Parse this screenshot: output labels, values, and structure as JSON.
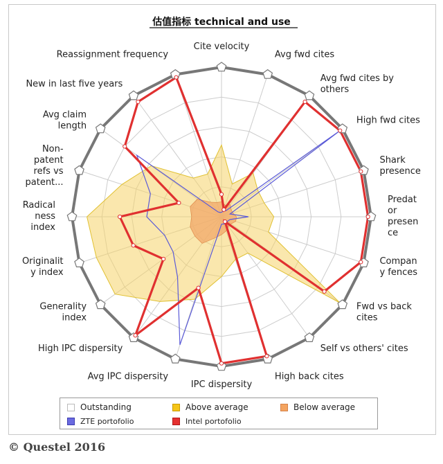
{
  "chart_data": {
    "type": "radar",
    "title": "估值指标 technical and use",
    "axes": [
      "Cite velocity",
      "Avg fwd cites",
      "Avg fwd cites by others",
      "High fwd cites",
      "Shark presence",
      "Predator presence",
      "Company fences",
      "Fwd vs back cites",
      "Self vs others' cites",
      "High back cites",
      "IPC dispersity",
      "Avg IPC dispersity",
      "High IPC dispersity",
      "Generality index",
      "Originality index",
      "Radicalness index",
      "Non-patent refs vs patent...",
      "Avg claim length",
      "New in last five years",
      "Reassignment frequency"
    ],
    "axis_label_lines": [
      [
        "Cite velocity"
      ],
      [
        "Avg fwd cites"
      ],
      [
        "Avg fwd cites by",
        "others"
      ],
      [
        "High fwd cites"
      ],
      [
        "Shark",
        "presence"
      ],
      [
        "Predat",
        "or",
        "presen",
        "ce"
      ],
      [
        "Compan",
        "y fences"
      ],
      [
        "Fwd vs back",
        "cites"
      ],
      [
        "Self vs others' cites"
      ],
      [
        "High back cites"
      ],
      [
        "IPC dispersity"
      ],
      [
        "Avg IPC dispersity"
      ],
      [
        "High IPC dispersity"
      ],
      [
        "Generality",
        "index"
      ],
      [
        "Originalit",
        "y index"
      ],
      [
        "Radical",
        "ness",
        "index"
      ],
      [
        "Non-",
        "patent",
        "refs vs",
        "patent..."
      ],
      [
        "Avg claim",
        "length"
      ],
      [
        "New in last five years"
      ],
      [
        "Reassignment frequency"
      ]
    ],
    "scale": {
      "min": 0,
      "max": 1,
      "rings": 5
    },
    "grid": true,
    "series": [
      {
        "name": "Outstanding",
        "values": [
          1,
          1,
          1,
          1,
          1,
          1,
          1,
          1,
          1,
          1,
          1,
          1,
          1,
          1,
          1,
          1,
          1,
          1,
          1,
          1
        ]
      },
      {
        "name": "Above average",
        "values": [
          0.48,
          0.23,
          0.36,
          0.3,
          0.3,
          0.35,
          0.33,
          0.98,
          0.3,
          0.3,
          0.4,
          0.58,
          0.7,
          0.88,
          0.88,
          0.9,
          0.7,
          0.58,
          0.32,
          0.3
        ]
      },
      {
        "name": "Below average",
        "values": [
          0.1,
          0.08,
          0.1,
          0.08,
          0.08,
          0.1,
          0.1,
          0.08,
          0.08,
          0.1,
          0.12,
          0.15,
          0.22,
          0.22,
          0.22,
          0.2,
          0.22,
          0.2,
          0.12,
          0.1
        ]
      },
      {
        "name": "ZTE portofolio",
        "values": [
          0.03,
          0.04,
          0.05,
          0.99,
          0.06,
          0.18,
          0.06,
          0.05,
          0.06,
          0.05,
          0.05,
          0.9,
          0.5,
          0.4,
          0.4,
          0.5,
          0.5,
          0.7,
          0.04,
          0.03
        ]
      },
      {
        "name": "Intel portofolio",
        "values": [
          0.15,
          0.05,
          0.95,
          0.98,
          0.98,
          0.98,
          0.98,
          0.85,
          0.04,
          0.98,
          0.98,
          0.5,
          0.98,
          0.48,
          0.62,
          0.68,
          0.3,
          0.8,
          0.95,
          0.98
        ]
      }
    ],
    "legend": {
      "position": "bottom",
      "items": [
        {
          "label": "Outstanding",
          "color": "#ffffff",
          "border": "#bbbbbb"
        },
        {
          "label": "Above average",
          "color": "#f5c518",
          "border": "#c99a00"
        },
        {
          "label": "Below average",
          "color": "#f4a460",
          "border": "#d4824a"
        },
        {
          "label": "ZTE portofolio",
          "color": "#6a6ae0",
          "border": "#3c3cb0"
        },
        {
          "label": "Intel portofolio",
          "color": "#e53030",
          "border": "#b01818"
        }
      ]
    },
    "colors": {
      "outline": "#777777",
      "grid": "#cccccc",
      "above_fill": "#f5d36a",
      "above_stroke": "#e0c030",
      "below_fill": "#f2a86a",
      "zte": "#5a5ad8",
      "intel": "#e03030"
    }
  },
  "footer": {
    "copyright": "© Questel 2016"
  }
}
